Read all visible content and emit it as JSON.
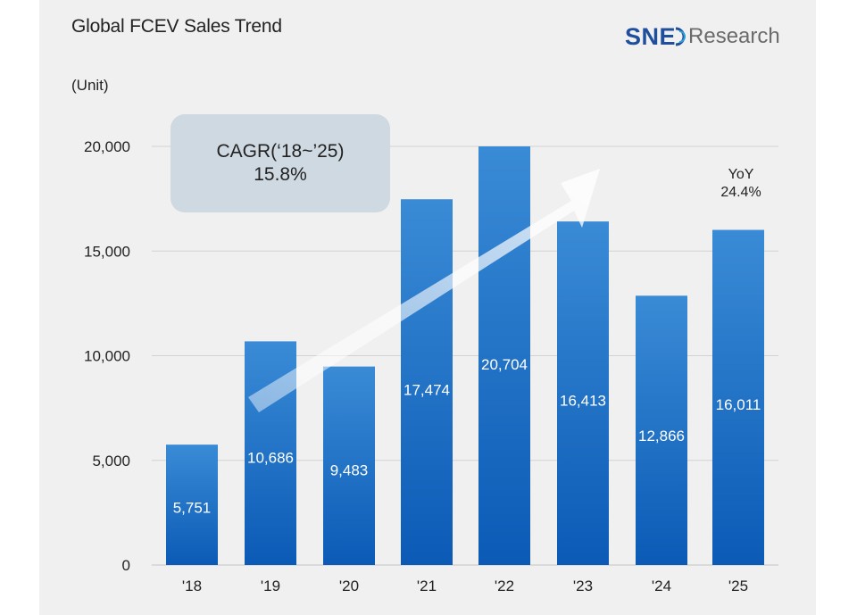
{
  "title": "Global FCEV Sales Trend",
  "unit_label": "(Unit)",
  "logo": {
    "sne": "SNE",
    "research": "Research"
  },
  "cagr": {
    "line1": "CAGR(‘18~’25)",
    "line2": "15.8%"
  },
  "yoy": {
    "line1": "YoY",
    "line2": "24.4%"
  },
  "colors": {
    "bar_top": "#3a8bd6",
    "bar_bottom": "#0b5ab6",
    "grid": "#d2d2d2",
    "arrow": "#ffffff"
  },
  "chart_data": {
    "type": "bar",
    "title": "Global FCEV Sales Trend",
    "ylabel": "(Unit)",
    "xlabel": "",
    "categories": [
      "'18",
      "'19",
      "'20",
      "'21",
      "'22",
      "'23",
      "'24",
      "'25"
    ],
    "values": [
      5751,
      10686,
      9483,
      17474,
      20704,
      16413,
      12866,
      16011
    ],
    "value_labels": [
      "5,751",
      "10,686",
      "9,483",
      "17,474",
      "20,704",
      "16,413",
      "12,866",
      "16,011"
    ],
    "yticks": [
      0,
      5000,
      10000,
      15000,
      20000
    ],
    "ytick_labels": [
      "0",
      "5,000",
      "10,000",
      "15,000",
      "20,000"
    ],
    "ylim": [
      0,
      20000
    ],
    "grid": true,
    "annotations": [
      "CAGR(‘18~’25) 15.8%",
      "YoY 24.4%"
    ]
  }
}
